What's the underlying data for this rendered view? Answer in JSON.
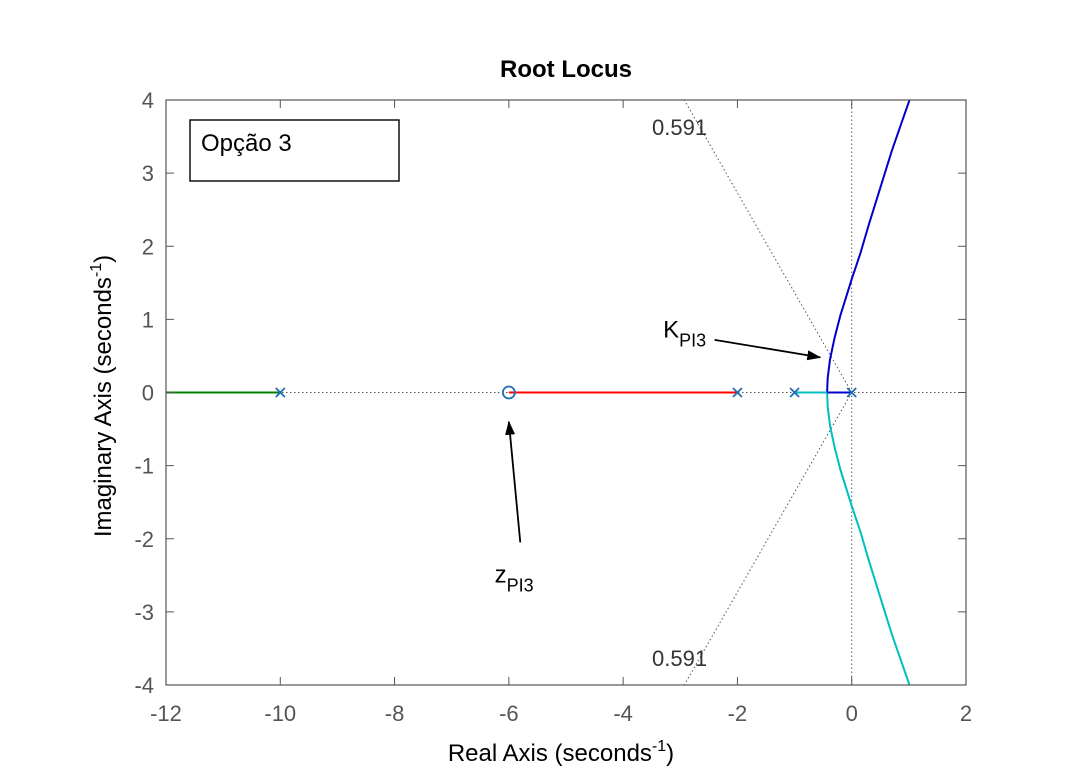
{
  "chart_data": {
    "type": "line",
    "title": "Root Locus",
    "xlabel": "Real Axis (seconds",
    "ylabel": "Imaginary Axis (seconds",
    "unit_exponent": "-1",
    "xlim": [
      -12,
      2
    ],
    "ylim": [
      -4,
      4
    ],
    "xticks": [
      "-12",
      "-10",
      "-8",
      "-6",
      "-4",
      "-2",
      "0",
      "2"
    ],
    "yticks": [
      "-4",
      "-3",
      "-2",
      "-1",
      "0",
      "1",
      "2",
      "3",
      "4"
    ],
    "legend_box": "Opção 3",
    "damping_label": "0.591",
    "colors": {
      "branch_blue": "#0000cc",
      "branch_cyan": "#00bfbf",
      "branch_red": "#ff0000",
      "branch_green": "#008000",
      "marker": "#1f6fb5",
      "grid": "#555555"
    },
    "poles": [
      [
        -10,
        0
      ],
      [
        -2,
        0
      ],
      [
        -1,
        0
      ],
      [
        0,
        0
      ]
    ],
    "zeros": [
      [
        -6,
        0
      ]
    ],
    "series": [
      {
        "name": "branch-upper",
        "color": "#0000cc",
        "points": [
          [
            -0.43,
            0
          ],
          [
            -0.42,
            0.2
          ],
          [
            -0.38,
            0.45
          ],
          [
            -0.3,
            0.75
          ],
          [
            -0.2,
            1.05
          ],
          [
            -0.1,
            1.3
          ],
          [
            0.0,
            1.55
          ],
          [
            0.15,
            1.9
          ],
          [
            0.3,
            2.3
          ],
          [
            0.5,
            2.8
          ],
          [
            0.7,
            3.3
          ],
          [
            0.9,
            3.75
          ],
          [
            1.08,
            4.15
          ]
        ]
      },
      {
        "name": "branch-lower",
        "color": "#00bfbf",
        "points": [
          [
            -0.43,
            0
          ],
          [
            -0.42,
            -0.2
          ],
          [
            -0.38,
            -0.45
          ],
          [
            -0.3,
            -0.75
          ],
          [
            -0.2,
            -1.05
          ],
          [
            -0.1,
            -1.3
          ],
          [
            0.0,
            -1.55
          ],
          [
            0.15,
            -1.9
          ],
          [
            0.3,
            -2.3
          ],
          [
            0.5,
            -2.8
          ],
          [
            0.7,
            -3.3
          ],
          [
            0.9,
            -3.75
          ],
          [
            1.08,
            -4.15
          ]
        ]
      },
      {
        "name": "branch-real-cyan",
        "color": "#00bfbf",
        "points": [
          [
            -1,
            0
          ],
          [
            -0.43,
            0
          ]
        ]
      },
      {
        "name": "branch-real-blue",
        "color": "#0000cc",
        "points": [
          [
            0,
            0
          ],
          [
            -0.43,
            0
          ]
        ]
      },
      {
        "name": "branch-real-red",
        "color": "#ff0000",
        "points": [
          [
            -2,
            0
          ],
          [
            -6,
            0
          ]
        ]
      },
      {
        "name": "branch-real-green",
        "color": "#008000",
        "points": [
          [
            -10,
            0
          ],
          [
            -12,
            0
          ]
        ]
      }
    ],
    "annotations": [
      {
        "name": "kpi3",
        "main": "K",
        "sub": "PI3",
        "text_at": [
          -3.3,
          0.75
        ],
        "arrow_from": [
          -2.4,
          0.72
        ],
        "arrow_to": [
          -0.55,
          0.48
        ]
      },
      {
        "name": "zpi3",
        "main": "z",
        "sub": "PI3",
        "text_at": [
          -6.25,
          -2.6
        ],
        "arrow_from": [
          -5.8,
          -2.05
        ],
        "arrow_to": [
          -6.0,
          -0.4
        ]
      }
    ]
  }
}
